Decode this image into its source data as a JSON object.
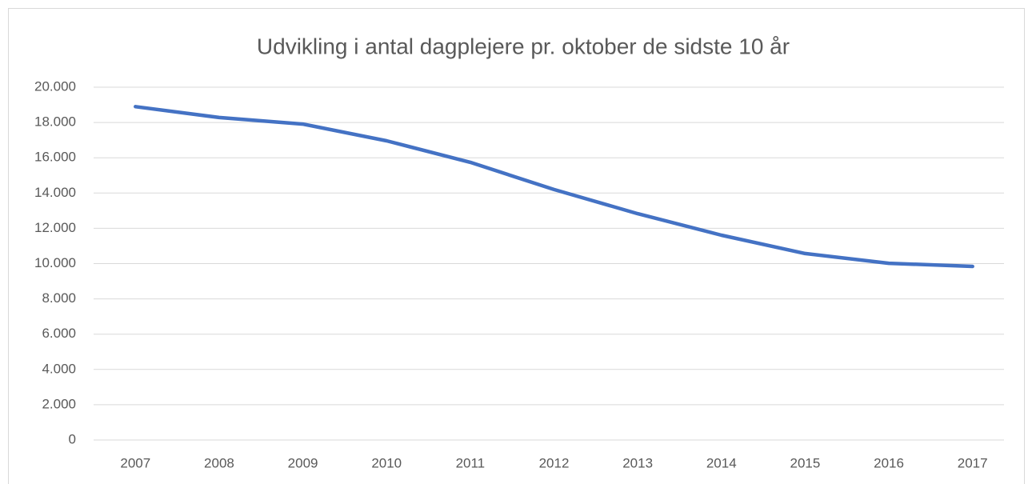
{
  "chart_data": {
    "type": "line",
    "title": "Udvikling i antal dagplejere pr. oktober de sidste 10 år",
    "categories": [
      "2007",
      "2008",
      "2009",
      "2010",
      "2011",
      "2012",
      "2013",
      "2014",
      "2015",
      "2016",
      "2017"
    ],
    "series": [
      {
        "color": "#4472c4",
        "values": [
          18900,
          18280,
          17910,
          16960,
          15740,
          14200,
          12830,
          11610,
          10570,
          10020,
          9840
        ]
      }
    ],
    "ylim": [
      0,
      20000
    ],
    "yticks": [
      0,
      {
        "value": 2000,
        "label": "2.000"
      },
      {
        "value": 4000,
        "label": "4.000"
      },
      {
        "value": 6000,
        "label": "6.000"
      },
      {
        "value": 8000,
        "label": "8.000"
      },
      {
        "value": 10000,
        "label": "10.000"
      },
      {
        "value": 12000,
        "label": "12.000"
      },
      {
        "value": 14000,
        "label": "14.000"
      },
      {
        "value": 16000,
        "label": "16.000"
      },
      {
        "value": 18000,
        "label": "18.000"
      },
      {
        "value": 20000,
        "label": "20.000"
      }
    ],
    "grid": true
  }
}
